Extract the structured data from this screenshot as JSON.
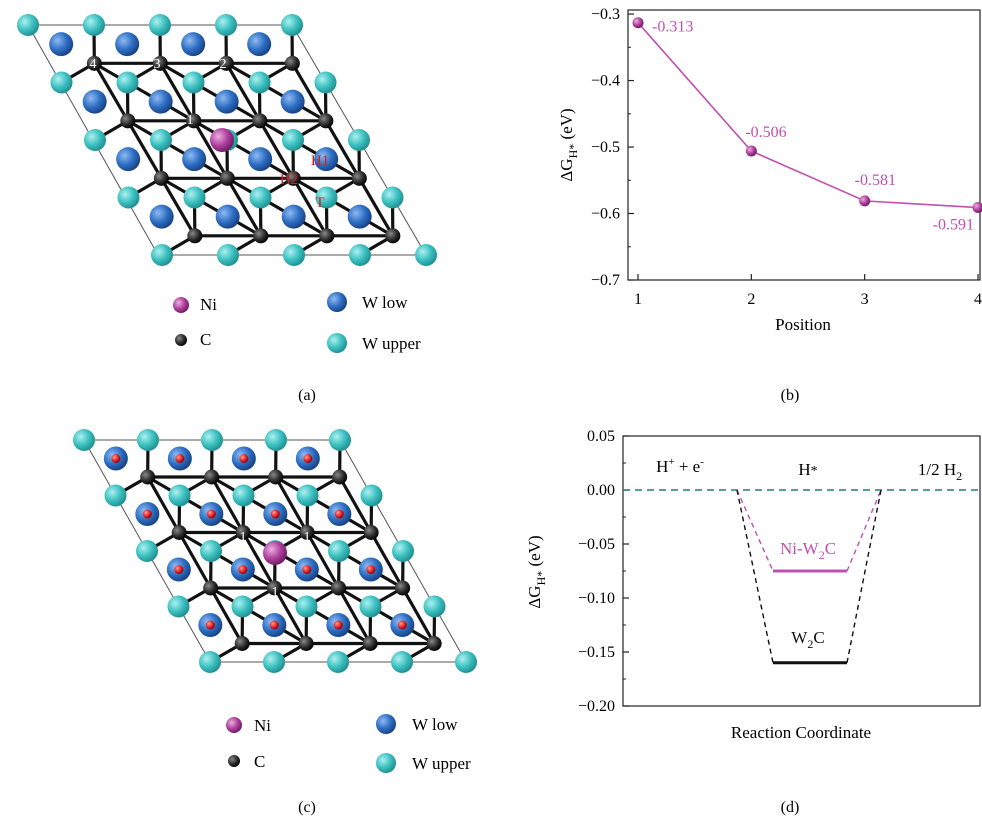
{
  "panel_a": {
    "label": "(a)",
    "site_numbers": [
      "4",
      "3",
      "2",
      "1"
    ],
    "site_labels": [
      "H1",
      "H2",
      "T"
    ],
    "legend": {
      "ni": "Ni",
      "c": "C",
      "w_low": "W low",
      "w_upper": "W upper"
    }
  },
  "panel_b": {
    "label": "(b)"
  },
  "panel_c": {
    "label": "(c)",
    "site_numbers": [
      "1",
      "1",
      "1"
    ],
    "legend": {
      "ni": "Ni",
      "c": "C",
      "w_low": "W low",
      "w_upper": "W upper"
    }
  },
  "panel_d": {
    "label": "(d)"
  },
  "colors": {
    "ni": "#b0409e",
    "carbon": "#2a2a2a",
    "w_low": "#2e6fc4",
    "w_upper": "#3cc0c0",
    "curve": "#c050b0",
    "dashed_zero": "#2a7a7a",
    "site_label": "#d02020",
    "h_marker": "#e02020"
  },
  "chart_data": [
    {
      "type": "line",
      "x": [
        1,
        2,
        3,
        4
      ],
      "y": [
        -0.313,
        -0.506,
        -0.581,
        -0.591
      ],
      "data_labels": [
        "-0.313",
        "-0.506",
        "-0.581",
        "-0.591"
      ],
      "xlabel": "Position",
      "ylabel": "ΔG",
      "ylabel_sub": "H*",
      "ylabel_unit": "(eV)",
      "xlim": [
        1,
        4
      ],
      "ylim": [
        -0.7,
        -0.3
      ],
      "xticks": [
        "1",
        "2",
        "3",
        "4"
      ],
      "yticks": [
        "−0.7",
        "−0.6",
        "−0.5",
        "−0.4",
        "−0.3"
      ],
      "ytick_values": [
        -0.7,
        -0.6,
        -0.5,
        -0.4,
        -0.3
      ],
      "color": "#c050b0"
    },
    {
      "type": "line",
      "xlabel": "Reaction Coordinate",
      "ylabel": "ΔG",
      "ylabel_sub": "H*",
      "ylabel_unit": "(eV)",
      "ylim": [
        -0.2,
        0.05
      ],
      "yticks": [
        "0.05",
        "0.00",
        "−0.05",
        "−0.10",
        "−0.15",
        "−0.20"
      ],
      "ytick_values": [
        0.05,
        0.0,
        -0.05,
        -0.1,
        -0.15,
        -0.2
      ],
      "states": [
        {
          "label_main": "H",
          "label_sup": "+",
          "label_rest": " + e",
          "label_sup2": "-",
          "value": 0.0
        },
        {
          "label_main": "H",
          "label_sub": "*",
          "value": null
        },
        {
          "label_main": "1/2 H",
          "label_sub": "2",
          "value": 0.0
        }
      ],
      "series": [
        {
          "name_main": "Ni-W",
          "name_sub": "2",
          "name_rest": "C",
          "value": -0.075,
          "color": "#c050b0"
        },
        {
          "name_main": "W",
          "name_sub": "2",
          "name_rest": "C",
          "value": -0.16,
          "color": "#111111"
        }
      ]
    }
  ]
}
